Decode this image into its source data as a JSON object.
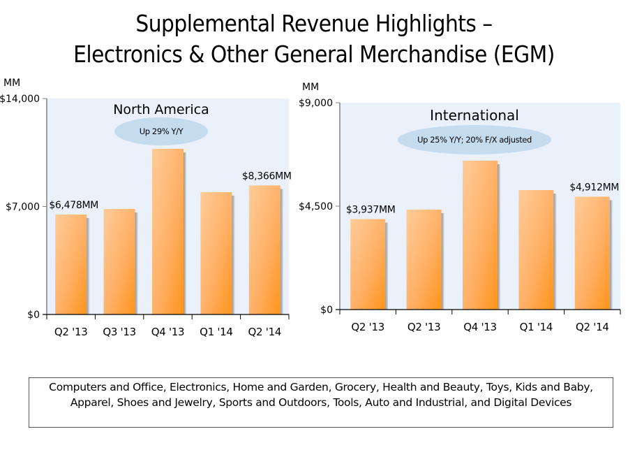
{
  "title": {
    "line1": "Supplemental Revenue Highlights –",
    "line2": "Electronics & Other General Merchandise (EGM)"
  },
  "note": "Computers and Office, Electronics, Home and Garden, Grocery, Health and Beauty, Toys, Kids and Baby, Apparel, Shoes and Jewelry, Sports and Outdoors, Tools, Auto and Industrial, and Digital Devices",
  "colors": {
    "plot_bg": "#eaf1fb",
    "bar_light": "#ffcc99",
    "bar_dark": "#ff9419",
    "bar_shadow": "#8a8a8a",
    "callout": "#c5dcef",
    "axis": "#000000"
  },
  "chart_data": [
    {
      "type": "bar",
      "title": "North America",
      "callout": "Up 29% Y/Y",
      "unit_label": "MM",
      "categories": [
        "Q2 '13",
        "Q3 '13",
        "Q4 '13",
        "Q1 '14",
        "Q2 '14"
      ],
      "values": [
        6478,
        6840,
        10740,
        7930,
        8366
      ],
      "data_labels": [
        "$6,478MM",
        "",
        "",
        "",
        "$8,366MM"
      ],
      "yticks": [
        0,
        7000,
        14000
      ],
      "ytick_labels": [
        "$0",
        "$7,000",
        "$14,000"
      ],
      "ylim": [
        0,
        14000
      ],
      "xlabel": "",
      "ylabel": "MM",
      "grid": false,
      "legend": "none"
    },
    {
      "type": "bar",
      "title": "International",
      "callout": "Up 25% Y/Y; 20% F/X adjusted",
      "unit_label": "MM",
      "categories": [
        "Q2 '13",
        "Q2 '13",
        "Q4 '13",
        "Q1 '14",
        "Q2 '14"
      ],
      "values": [
        3937,
        4350,
        6480,
        5200,
        4912
      ],
      "data_labels": [
        "$3,937MM",
        "",
        "",
        "",
        "$4,912MM"
      ],
      "yticks": [
        0,
        4500,
        9000
      ],
      "ytick_labels": [
        "$0",
        "$4,500",
        "$9,000"
      ],
      "ylim": [
        0,
        9000
      ],
      "xlabel": "",
      "ylabel": "MM",
      "grid": false,
      "legend": "none"
    }
  ]
}
